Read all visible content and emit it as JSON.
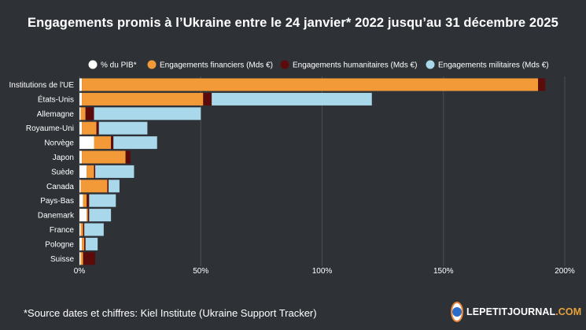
{
  "title": "Engagements promis à l’Ukraine entre le 24 janvier* 2022 jusqu’au 31 décembre 2025",
  "source": "*Source dates et chiffres: Kiel Institute (Ukraine Support Tracker)",
  "logo": {
    "main": "LEPETITJOURNAL",
    "suffix": ".COM",
    "icon": "globe-icon"
  },
  "colors": {
    "background": "#2e3237",
    "gdp": "#ffffff",
    "financial": "#f29a38",
    "humanitarian": "#5c0b0b",
    "military": "#a8d8ea",
    "grid": "#4a4f55"
  },
  "chart_data": {
    "type": "bar",
    "orientation": "horizontal",
    "stacked": true,
    "title": "Engagements promis à l’Ukraine entre le 24 janvier* 2022 jusqu’au 31 décembre 2025",
    "xlabel": "",
    "ylabel": "",
    "xlim": [
      0,
      200
    ],
    "x_ticks": [
      "0%",
      "50%",
      "100%",
      "150%",
      "200%"
    ],
    "x_tick_values": [
      0,
      50,
      100,
      150,
      200
    ],
    "legend_position": "top",
    "categories": [
      "Institutions de l'UE",
      "États-Unis",
      "Allemagne",
      "Royaume-Uni",
      "Norvège",
      "Japon",
      "Suède",
      "Canada",
      "Pays-Bas",
      "Danemark",
      "France",
      "Pologne",
      "Suisse"
    ],
    "series": [
      {
        "name": "% du PIB*",
        "key": "gdp",
        "values": [
          1,
          1,
          0.5,
          1,
          6,
          1,
          3,
          0.5,
          1.5,
          3,
          0.5,
          1,
          0.5
        ]
      },
      {
        "name": "Engagements financiers (Mds €)",
        "key": "financial",
        "values": [
          188,
          50,
          2,
          6,
          7,
          18,
          3,
          11,
          1.5,
          0.5,
          1,
          1,
          1
        ]
      },
      {
        "name": "Engagements humanitaires (Mds €)",
        "key": "humanitarian",
        "values": [
          3,
          3.5,
          3.5,
          1,
          1,
          2,
          0.5,
          0.5,
          1,
          0.5,
          0.5,
          0.5,
          5
        ]
      },
      {
        "name": "Engagements militaires (Mds €)",
        "key": "military",
        "values": [
          0,
          66,
          44,
          20,
          18,
          0,
          16,
          4.5,
          11,
          9,
          8,
          5,
          0
        ]
      }
    ]
  }
}
